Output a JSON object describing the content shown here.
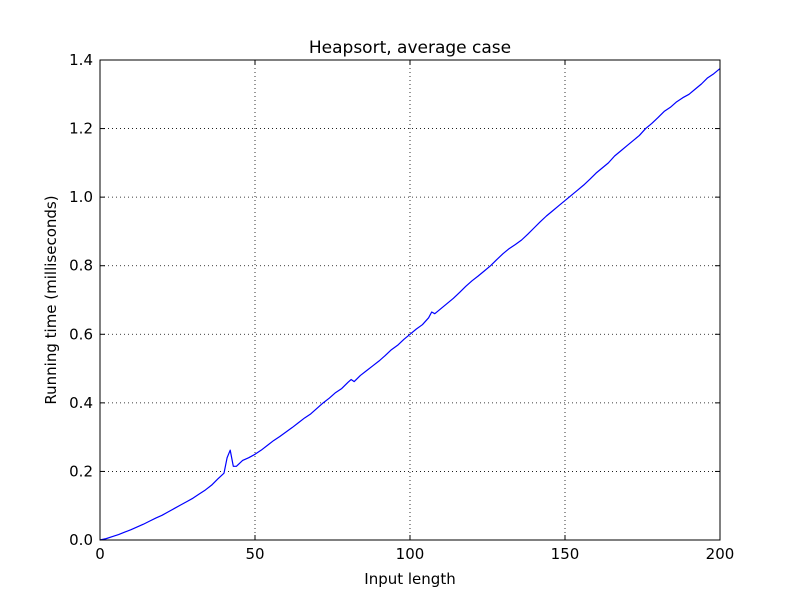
{
  "chart_data": {
    "type": "line",
    "title": "Heapsort, average case",
    "xlabel": "Input length",
    "ylabel": "Running time (milliseconds)",
    "xlim": [
      0,
      200
    ],
    "ylim": [
      0,
      1.4
    ],
    "xticks": [
      0,
      50,
      100,
      150,
      200
    ],
    "yticks": [
      0.0,
      0.2,
      0.4,
      0.6,
      0.8,
      1.0,
      1.2,
      1.4
    ],
    "xtick_labels": [
      "0",
      "50",
      "100",
      "150",
      "200"
    ],
    "ytick_labels": [
      "0.0",
      "0.2",
      "0.4",
      "0.6",
      "0.8",
      "1.0",
      "1.2",
      "1.4"
    ],
    "grid": true,
    "line_color": "#0000ff",
    "series": [
      {
        "x": [
          0,
          2,
          4,
          6,
          8,
          10,
          12,
          14,
          16,
          18,
          20,
          22,
          24,
          26,
          28,
          30,
          32,
          34,
          36,
          38,
          40,
          41,
          42,
          43,
          44,
          46,
          48,
          50,
          52,
          54,
          56,
          58,
          60,
          62,
          64,
          66,
          68,
          70,
          72,
          74,
          76,
          78,
          80,
          81,
          82,
          84,
          86,
          88,
          90,
          92,
          94,
          96,
          98,
          100,
          102,
          104,
          106,
          107,
          108,
          110,
          112,
          114,
          116,
          118,
          120,
          122,
          124,
          126,
          128,
          130,
          132,
          134,
          136,
          138,
          140,
          142,
          144,
          146,
          148,
          150,
          152,
          154,
          156,
          158,
          160,
          162,
          164,
          166,
          168,
          170,
          172,
          174,
          176,
          178,
          180,
          182,
          184,
          186,
          188,
          190,
          192,
          194,
          196,
          198,
          200
        ],
        "y": [
          0.0,
          0.004,
          0.01,
          0.016,
          0.023,
          0.03,
          0.038,
          0.046,
          0.055,
          0.064,
          0.072,
          0.082,
          0.092,
          0.102,
          0.112,
          0.122,
          0.134,
          0.146,
          0.16,
          0.178,
          0.195,
          0.24,
          0.262,
          0.215,
          0.215,
          0.232,
          0.24,
          0.25,
          0.262,
          0.276,
          0.29,
          0.302,
          0.315,
          0.328,
          0.342,
          0.356,
          0.368,
          0.384,
          0.4,
          0.414,
          0.43,
          0.442,
          0.46,
          0.468,
          0.462,
          0.48,
          0.494,
          0.508,
          0.522,
          0.538,
          0.555,
          0.568,
          0.585,
          0.6,
          0.615,
          0.628,
          0.648,
          0.665,
          0.66,
          0.675,
          0.69,
          0.705,
          0.722,
          0.74,
          0.756,
          0.77,
          0.785,
          0.8,
          0.818,
          0.835,
          0.85,
          0.862,
          0.875,
          0.892,
          0.91,
          0.928,
          0.945,
          0.96,
          0.975,
          0.99,
          1.005,
          1.02,
          1.035,
          1.052,
          1.07,
          1.085,
          1.1,
          1.12,
          1.135,
          1.15,
          1.165,
          1.18,
          1.2,
          1.215,
          1.232,
          1.25,
          1.262,
          1.278,
          1.29,
          1.3,
          1.315,
          1.33,
          1.348,
          1.36,
          1.375
        ]
      }
    ]
  }
}
